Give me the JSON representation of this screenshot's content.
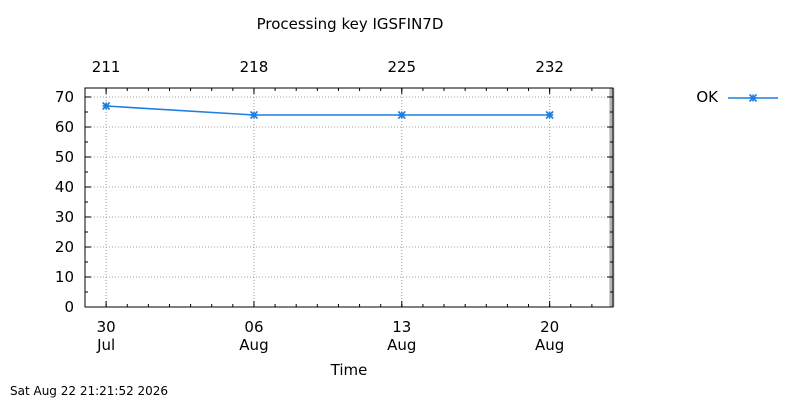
{
  "chart_data": {
    "type": "line",
    "title": "Processing key IGSFIN7D",
    "xlabel": "Time",
    "ylabel": "",
    "ylim": [
      0,
      73
    ],
    "xlim": [
      "2026-07-29",
      "2026-08-23"
    ],
    "grid": true,
    "legend_position": "top-right-outside",
    "x_ticks_bottom": [
      {
        "date": "2026-07-30",
        "day": "30",
        "month": "Jul"
      },
      {
        "date": "2026-08-06",
        "day": "06",
        "month": "Aug"
      },
      {
        "date": "2026-08-13",
        "day": "13",
        "month": "Aug"
      },
      {
        "date": "2026-08-20",
        "day": "20",
        "month": "Aug"
      }
    ],
    "x_ticks_top": [
      {
        "date": "2026-07-30",
        "label": "211"
      },
      {
        "date": "2026-08-06",
        "label": "218"
      },
      {
        "date": "2026-08-13",
        "label": "225"
      },
      {
        "date": "2026-08-20",
        "label": "232"
      }
    ],
    "y_ticks": [
      "0",
      "10",
      "20",
      "30",
      "40",
      "50",
      "60",
      "70"
    ],
    "series": [
      {
        "name": "OK",
        "color": "#1e7fe0",
        "marker": "asterisk",
        "x": [
          "2026-07-30",
          "2026-08-06",
          "2026-08-13",
          "2026-08-20"
        ],
        "values": [
          67,
          64,
          64,
          64
        ]
      }
    ],
    "now_marker": {
      "date": "2026-08-22",
      "color": "#b4b4b4"
    }
  },
  "timestamp": "Sat Aug 22 21:21:52 2026"
}
